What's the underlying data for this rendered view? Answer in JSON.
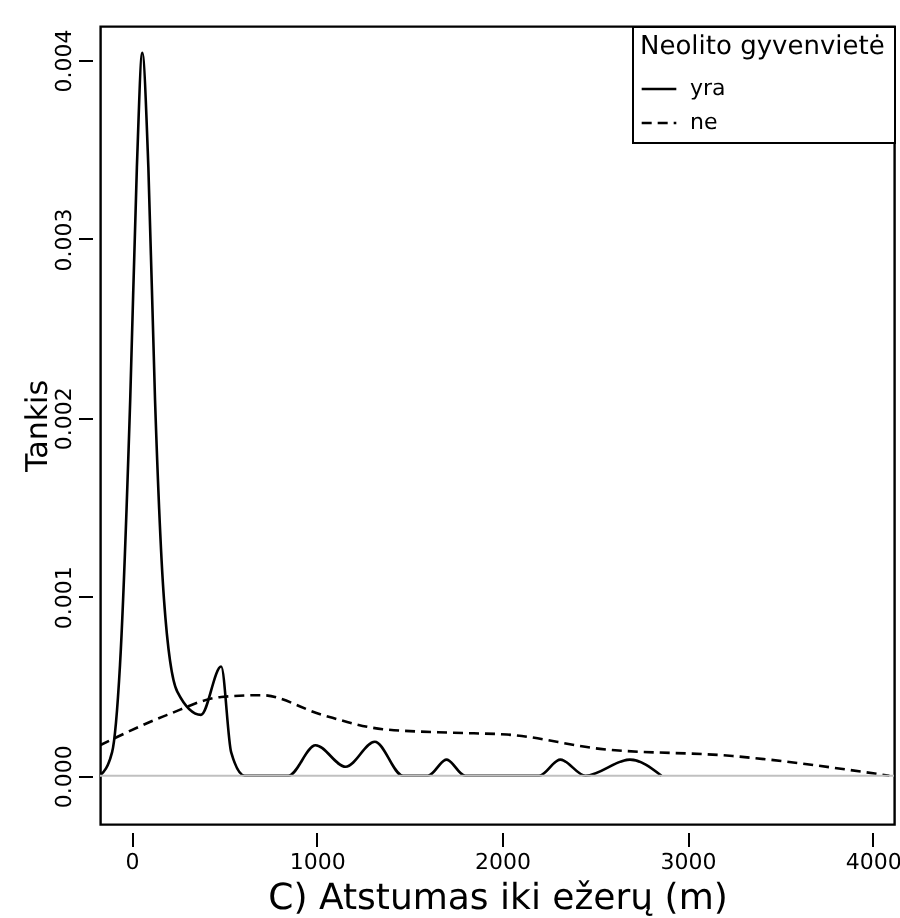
{
  "chart_data": {
    "type": "line",
    "xlabel": "C) Atstumas iki ežerų (m)",
    "ylabel": "Tankis",
    "legend_title": "Neolito gyvenvietė",
    "legend": "top right",
    "grid": false,
    "marker": "none",
    "xlim": [
      -170,
      4115
    ],
    "xticks": [
      0,
      1000,
      2000,
      3000,
      4000
    ],
    "ylim": [
      -0.00027,
      0.00419
    ],
    "yticks": [
      {
        "value": 0,
        "label": "0.000"
      },
      {
        "value": 0.001,
        "label": "0.001"
      },
      {
        "value": 0.002,
        "label": "0.002"
      },
      {
        "value": 0.003,
        "label": "0.003"
      },
      {
        "value": 0.004,
        "label": "0.004"
      }
    ],
    "ref_lines": [
      {
        "axis": "y",
        "value": 0,
        "label": null,
        "color": "#c0c0c0"
      }
    ],
    "series": [
      {
        "name": "yra",
        "color": "#000000",
        "line_style": "solid",
        "x": [
          -170,
          -105,
          -62,
          -7,
          29,
          58,
          91,
          127,
          175,
          247,
          375,
          484,
          538,
          611,
          847,
          993,
          1156,
          1313,
          1465,
          1600,
          1700,
          1800,
          2200,
          2314,
          2450,
          2690,
          2860
        ],
        "values": [
          0,
          0.00013,
          0.00062,
          0.0021,
          0.0034,
          0.00404,
          0.0034,
          0.0021,
          0.00099,
          0.00047,
          0.00034,
          0.00061,
          0.00013,
          0,
          0,
          0.00017,
          5e-05,
          0.00019,
          0,
          0,
          9e-05,
          0,
          0,
          9e-05,
          0,
          9e-05,
          0
        ]
      },
      {
        "name": "ne",
        "color": "#000000",
        "line_style": "dashed",
        "x": [
          -170,
          193,
          484,
          702,
          1029,
          1356,
          1738,
          2026,
          2529,
          3244,
          4090
        ],
        "values": [
          0.00017,
          0.00034,
          0.00044,
          0.00045,
          0.00034,
          0.00026,
          0.00024,
          0.00023,
          0.00015,
          0.00011,
          0
        ]
      }
    ]
  }
}
